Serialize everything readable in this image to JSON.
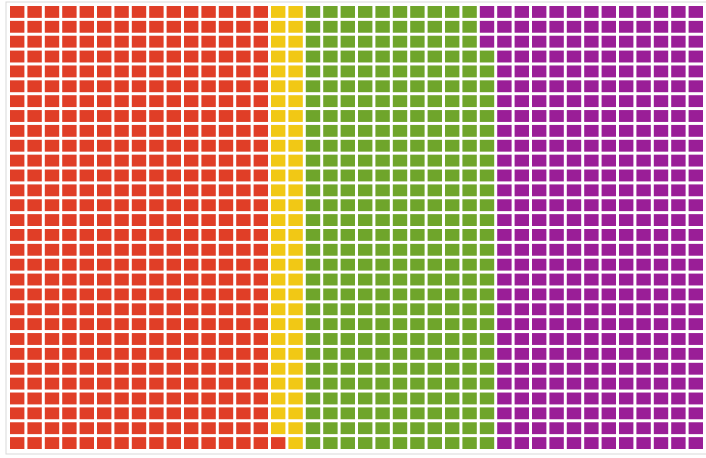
{
  "chart_data": {
    "type": "waffle",
    "rows": 30,
    "columns": 40,
    "values": [
      451,
      59,
      327,
      363
    ],
    "colors": [
      "#e03e27",
      "#f1c815",
      "#6fa52b",
      "#9a1e97"
    ]
  }
}
